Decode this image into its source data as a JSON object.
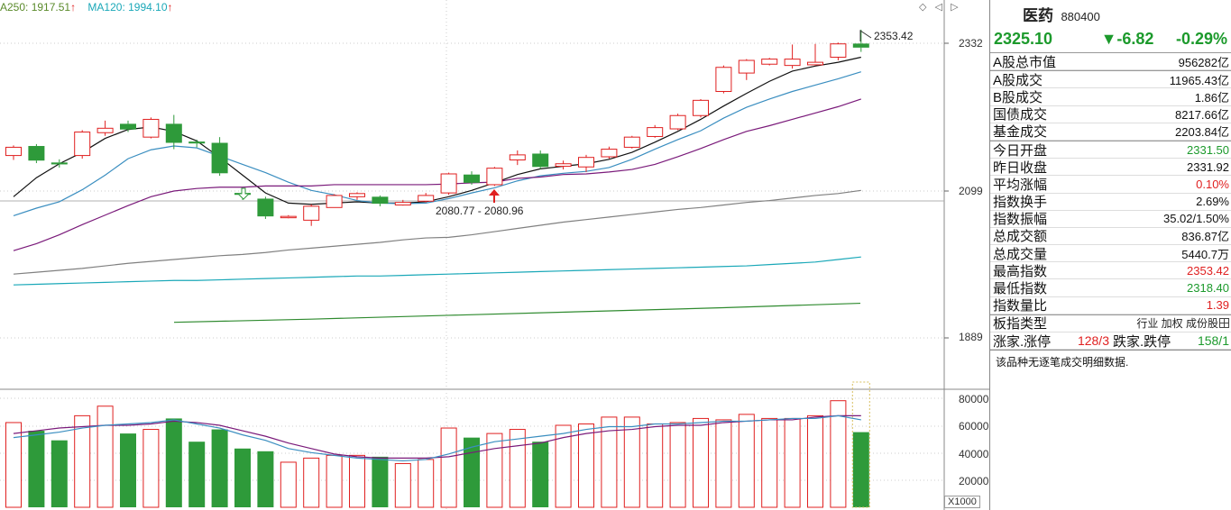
{
  "legend": {
    "ma250": "A250: 1917.51",
    "ma120": "MA120: 1994.10",
    "arrow": "↑"
  },
  "top_icons": {
    "diamond": "◇",
    "left_arrow": "◁",
    "right_arrow": "▷"
  },
  "price_axis": {
    "labels": [
      "2332",
      "2099",
      "1889"
    ]
  },
  "volume_axis": {
    "labels": [
      "80000",
      "60000",
      "40000",
      "20000"
    ],
    "unit": "X1000"
  },
  "annotations": {
    "high": "2353.42",
    "low_pair": "2080.77 - 2080.96"
  },
  "chart_data": {
    "type": "candlestick",
    "ylim": [
      1850,
      2380
    ],
    "candles": [
      {
        "o": 2155,
        "c": 2168,
        "h": 2171,
        "l": 2148
      },
      {
        "o": 2170,
        "c": 2147,
        "h": 2173,
        "l": 2143
      },
      {
        "o": 2144,
        "c": 2141,
        "h": 2149,
        "l": 2136
      },
      {
        "o": 2155,
        "c": 2192,
        "h": 2195,
        "l": 2150
      },
      {
        "o": 2191,
        "c": 2198,
        "h": 2210,
        "l": 2186
      },
      {
        "o": 2205,
        "c": 2196,
        "h": 2210,
        "l": 2192
      },
      {
        "o": 2184,
        "c": 2212,
        "h": 2215,
        "l": 2182
      },
      {
        "o": 2205,
        "c": 2175,
        "h": 2219,
        "l": 2165
      },
      {
        "o": 2177,
        "c": 2174,
        "h": 2180,
        "l": 2168
      },
      {
        "o": 2175,
        "c": 2127,
        "h": 2184,
        "l": 2123
      },
      {
        "o": 2096,
        "c": 2093,
        "h": 2103,
        "l": 2085
      },
      {
        "o": 2087,
        "c": 2059,
        "h": 2090,
        "l": 2055
      },
      {
        "o": 2058,
        "c": 2059,
        "h": 2061,
        "l": 2056
      },
      {
        "o": 2053,
        "c": 2075,
        "h": 2078,
        "l": 2044
      },
      {
        "o": 2073,
        "c": 2092,
        "h": 2094,
        "l": 2073
      },
      {
        "o": 2090,
        "c": 2095,
        "h": 2097,
        "l": 2085
      },
      {
        "o": 2090,
        "c": 2079,
        "h": 2092,
        "l": 2075
      },
      {
        "o": 2077,
        "c": 2081,
        "h": 2085,
        "l": 2076
      },
      {
        "o": 2083,
        "c": 2092,
        "h": 2096,
        "l": 2081
      },
      {
        "o": 2096,
        "c": 2126,
        "h": 2128,
        "l": 2093
      },
      {
        "o": 2125,
        "c": 2112,
        "h": 2130,
        "l": 2109
      },
      {
        "o": 2109,
        "c": 2135,
        "h": 2137,
        "l": 2107
      },
      {
        "o": 2148,
        "c": 2156,
        "h": 2163,
        "l": 2140
      },
      {
        "o": 2158,
        "c": 2137,
        "h": 2163,
        "l": 2134
      },
      {
        "o": 2138,
        "c": 2142,
        "h": 2147,
        "l": 2133
      },
      {
        "o": 2137,
        "c": 2152,
        "h": 2156,
        "l": 2129
      },
      {
        "o": 2153,
        "c": 2165,
        "h": 2169,
        "l": 2150
      },
      {
        "o": 2168,
        "c": 2184,
        "h": 2186,
        "l": 2166
      },
      {
        "o": 2185,
        "c": 2199,
        "h": 2203,
        "l": 2183
      },
      {
        "o": 2197,
        "c": 2218,
        "h": 2221,
        "l": 2195
      },
      {
        "o": 2218,
        "c": 2242,
        "h": 2244,
        "l": 2215
      },
      {
        "o": 2256,
        "c": 2294,
        "h": 2297,
        "l": 2253
      },
      {
        "o": 2285,
        "c": 2305,
        "h": 2307,
        "l": 2274
      },
      {
        "o": 2299,
        "c": 2307,
        "h": 2309,
        "l": 2297
      },
      {
        "o": 2297,
        "c": 2307,
        "h": 2330,
        "l": 2292
      },
      {
        "o": 2298,
        "c": 2302,
        "h": 2331,
        "l": 2297
      },
      {
        "o": 2310,
        "c": 2331,
        "h": 2333,
        "l": 2305
      },
      {
        "o": 2331.5,
        "c": 2325.1,
        "h": 2353.42,
        "l": 2318.4
      }
    ],
    "ma_lines": [
      {
        "color": "#111111",
        "values": [
          2090,
          2120,
          2142,
          2160,
          2182,
          2196,
          2200,
          2193,
          2178,
          2152,
          2124,
          2096,
          2080,
          2078,
          2080,
          2082,
          2080,
          2080,
          2082,
          2090,
          2100,
          2112,
          2125,
          2134,
          2138,
          2142,
          2149,
          2160,
          2176,
          2193,
          2212,
          2233,
          2253,
          2272,
          2288,
          2296,
          2302,
          2310
        ]
      },
      {
        "color": "#3a8ec0",
        "values": [
          2060,
          2072,
          2082,
          2101,
          2124,
          2150,
          2164,
          2170,
          2167,
          2154,
          2141,
          2128,
          2113,
          2100,
          2093,
          2084,
          2080,
          2079,
          2080,
          2087,
          2096,
          2104,
          2115,
          2123,
          2127,
          2130,
          2136,
          2149,
          2165,
          2180,
          2194,
          2214,
          2231,
          2244,
          2256,
          2266,
          2276,
          2287
        ]
      },
      {
        "color": "#7a1a7a",
        "values": [
          2005,
          2016,
          2030,
          2046,
          2061,
          2076,
          2090,
          2099,
          2103,
          2105,
          2105,
          2107,
          2107,
          2107,
          2109,
          2109,
          2109,
          2109,
          2109,
          2110,
          2112,
          2113,
          2119,
          2121,
          2125,
          2126,
          2129,
          2133,
          2141,
          2153,
          2166,
          2180,
          2193,
          2202,
          2212,
          2222,
          2232,
          2244
        ]
      },
      {
        "color": "#808080",
        "values": [
          1968,
          1971,
          1974,
          1977,
          1981,
          1985,
          1988,
          1991,
          1994,
          1997,
          1999,
          2002,
          2006,
          2009,
          2012,
          2015,
          2018,
          2022,
          2025,
          2026,
          2030,
          2035,
          2040,
          2045,
          2050,
          2054,
          2058,
          2062,
          2066,
          2070,
          2073,
          2077,
          2081,
          2084,
          2088,
          2092,
          2095,
          2100
        ]
      },
      {
        "color": "#1aa8b8",
        "values": [
          1951,
          1952,
          1953,
          1954,
          1955,
          1956,
          1957,
          1958,
          1958,
          1959,
          1960,
          1961,
          1962,
          1963,
          1964,
          1965,
          1965,
          1966,
          1967,
          1968,
          1969,
          1970,
          1971,
          1972,
          1973,
          1974,
          1975,
          1976,
          1977,
          1978,
          1979,
          1980,
          1981,
          1983,
          1985,
          1987,
          1991,
          1995
        ]
      }
    ],
    "ma250_segment": {
      "start_index": 7,
      "values": [
        1892,
        1897,
        1903,
        1909,
        1915,
        1922
      ]
    },
    "volume": [
      62000,
      56000,
      49000,
      67000,
      74000,
      54000,
      57000,
      65000,
      48000,
      57000,
      43000,
      41000,
      33000,
      36000,
      38000,
      38000,
      37000,
      32000,
      35000,
      58000,
      51000,
      54000,
      57000,
      48000,
      60000,
      61000,
      66000,
      66000,
      61000,
      62000,
      65000,
      64000,
      68000,
      65000,
      65000,
      67000,
      78000,
      55000
    ],
    "volume_ma": [
      {
        "color": "#7a1a7a",
        "values": [
          54000,
          56000,
          58000,
          59000,
          60000,
          60000,
          61000,
          63000,
          62000,
          60000,
          56000,
          52000,
          47000,
          43000,
          39000,
          37000,
          36000,
          36000,
          36000,
          37000,
          40000,
          43000,
          45000,
          47000,
          51000,
          54000,
          56000,
          57000,
          59000,
          60000,
          60000,
          62000,
          63000,
          64000,
          64000,
          66000,
          67000,
          67000
        ]
      },
      {
        "color": "#3a8ec0",
        "values": [
          51000,
          53000,
          55000,
          58000,
          60000,
          61000,
          62000,
          64000,
          61000,
          58000,
          53000,
          49000,
          43000,
          40000,
          38000,
          36000,
          35000,
          34000,
          35000,
          39000,
          44000,
          48000,
          50000,
          52000,
          54000,
          57000,
          59000,
          59000,
          61000,
          61000,
          62000,
          63000,
          63000,
          64000,
          65000,
          65000,
          67000,
          64000
        ]
      }
    ],
    "volume_ylim": [
      0,
      90000
    ]
  },
  "panel": {
    "name": "医药",
    "code": "880400",
    "price": "2325.10",
    "change": "▼-6.82",
    "pct": "-0.29%",
    "rows_top": [
      {
        "label": "A股总市值",
        "value": "956282亿",
        "cls": ""
      }
    ],
    "rows_vol": [
      {
        "label": "A股成交",
        "value": "11965.43亿",
        "cls": ""
      },
      {
        "label": "B股成交",
        "value": "1.86亿",
        "cls": ""
      },
      {
        "label": "国债成交",
        "value": "8217.66亿",
        "cls": ""
      },
      {
        "label": "基金成交",
        "value": "2203.84亿",
        "cls": ""
      }
    ],
    "rows_stats": [
      {
        "label": "今日开盘",
        "value": "2331.50",
        "cls": "green"
      },
      {
        "label": "昨日收盘",
        "value": "2331.92",
        "cls": ""
      },
      {
        "label": "平均涨幅",
        "value": "0.10%",
        "cls": "red"
      },
      {
        "label": "指数换手",
        "value": "2.69%",
        "cls": ""
      },
      {
        "label": "指数振幅",
        "value": "35.02/1.50%",
        "cls": ""
      },
      {
        "label": "总成交额",
        "value": "836.87亿",
        "cls": ""
      },
      {
        "label": "总成交量",
        "value": "5440.7万",
        "cls": ""
      },
      {
        "label": "最高指数",
        "value": "2353.42",
        "cls": "red"
      },
      {
        "label": "最低指数",
        "value": "2318.40",
        "cls": "green"
      },
      {
        "label": "指数量比",
        "value": "1.39",
        "cls": "red"
      }
    ],
    "board": {
      "label": "板指类型",
      "value": "行业 加权 成份股"
    },
    "updown": {
      "up_label": "涨家.涨停",
      "up_value": "128/3",
      "down_label": "跌家.跌停",
      "down_value": "158/1"
    },
    "notice": "该品种无逐笔成交明细数据."
  }
}
